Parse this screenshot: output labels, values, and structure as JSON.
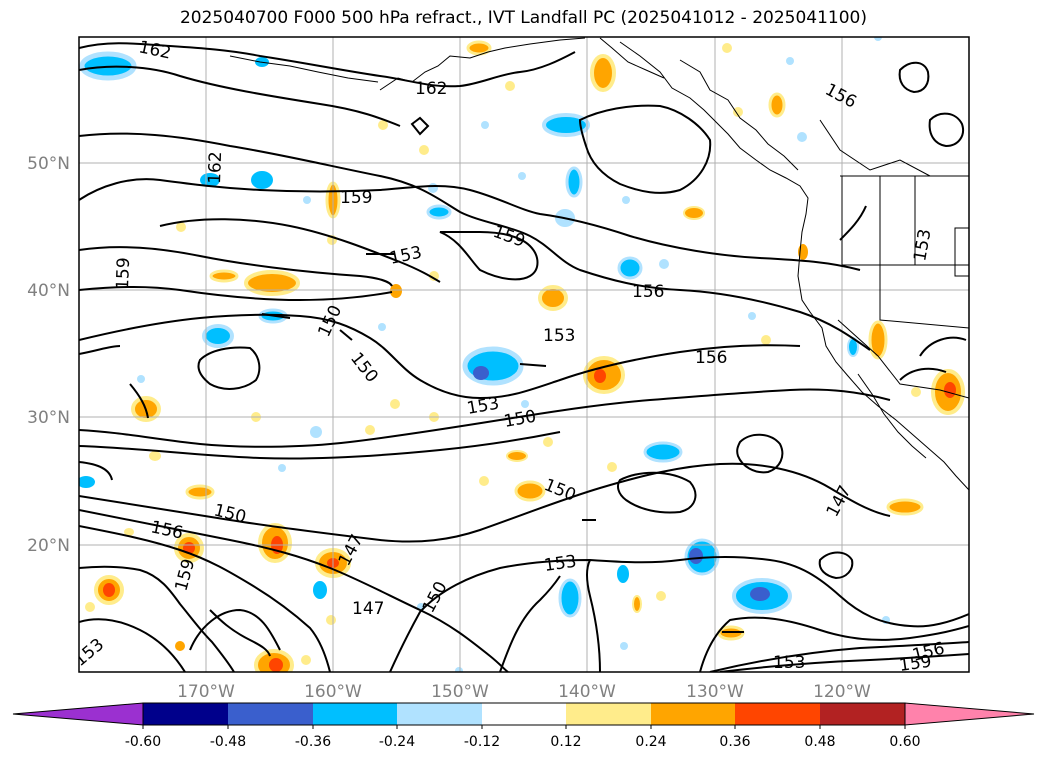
{
  "title": "2025040700 F000 500 hPa refract., IVT Landfall PC (2025041012 - 2025041100)",
  "map": {
    "lat_labels": [
      "50°N",
      "40°N",
      "30°N",
      "20°N"
    ],
    "lon_labels": [
      "170°W",
      "160°W",
      "150°W",
      "140°W",
      "130°W",
      "120°W"
    ],
    "contour_labels": [
      {
        "text": "162"
      },
      {
        "text": "162"
      },
      {
        "text": "162"
      },
      {
        "text": "159"
      },
      {
        "text": "159"
      },
      {
        "text": "159"
      },
      {
        "text": "156"
      },
      {
        "text": "156"
      },
      {
        "text": "156"
      },
      {
        "text": "153"
      },
      {
        "text": "153"
      },
      {
        "text": "153"
      },
      {
        "text": "150"
      },
      {
        "text": "150"
      },
      {
        "text": "150"
      },
      {
        "text": "150"
      },
      {
        "text": "150"
      },
      {
        "text": "147"
      },
      {
        "text": "147"
      },
      {
        "text": "147"
      },
      {
        "text": "153"
      },
      {
        "text": "150"
      },
      {
        "text": "153"
      },
      {
        "text": "156"
      },
      {
        "text": "159"
      },
      {
        "text": "153"
      },
      {
        "text": "153"
      },
      {
        "text": "159"
      },
      {
        "text": "156"
      }
    ]
  },
  "colorbar": {
    "ticks": [
      "-0.60",
      "-0.48",
      "-0.36",
      "-0.24",
      "-0.12",
      "0.12",
      "0.24",
      "0.36",
      "0.48",
      "0.60"
    ],
    "colors": [
      "#9b30d0",
      "#00008b",
      "#3a5fcd",
      "#00bfff",
      "#b0e2ff",
      "#ffffff",
      "#ffec8b",
      "#ffa500",
      "#ff4500",
      "#b22222",
      "#ff82ab"
    ]
  }
}
